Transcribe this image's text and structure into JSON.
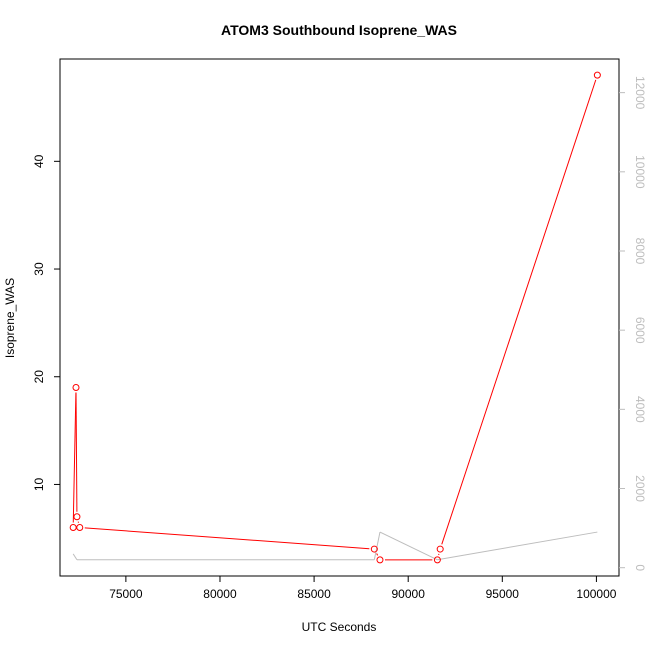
{
  "chart_data": {
    "type": "line",
    "title": "ATOM3 Southbound Isoprene_WAS",
    "xlabel": "UTC Seconds",
    "ylabel": "Isoprene_WAS",
    "xlim": [
      71500,
      101200
    ],
    "ylim": [
      1.5,
      49.5
    ],
    "x_ticks": [
      75000,
      80000,
      85000,
      90000,
      95000,
      100000
    ],
    "y_ticks": [
      10,
      20,
      30,
      40
    ],
    "y2_ticks": [
      0,
      2000,
      4000,
      6000,
      8000,
      10000,
      12000
    ],
    "y2lim": [
      -210,
      12850
    ],
    "grid": false,
    "legend": "none",
    "series": [
      {
        "color": "#ff0000",
        "marker": "open-circle",
        "axis": "left",
        "points": [
          {
            "x": 72200,
            "y": 6.0
          },
          {
            "x": 72350,
            "y": 19.0
          },
          {
            "x": 72400,
            "y": 7.0
          },
          {
            "x": 72550,
            "y": 6.0
          },
          {
            "x": 88200,
            "y": 4.0
          },
          {
            "x": 88500,
            "y": 3.0
          },
          {
            "x": 91550,
            "y": 3.0
          },
          {
            "x": 91700,
            "y": 4.0
          },
          {
            "x": 100050,
            "y": 48.0
          }
        ]
      },
      {
        "color": "#bdbdbd",
        "marker": "none",
        "axis": "right",
        "points": [
          {
            "x": 72200,
            "y": 350
          },
          {
            "x": 72400,
            "y": 200
          },
          {
            "x": 88200,
            "y": 200
          },
          {
            "x": 88500,
            "y": 900
          },
          {
            "x": 91550,
            "y": 200
          },
          {
            "x": 100050,
            "y": 900
          }
        ]
      }
    ]
  }
}
